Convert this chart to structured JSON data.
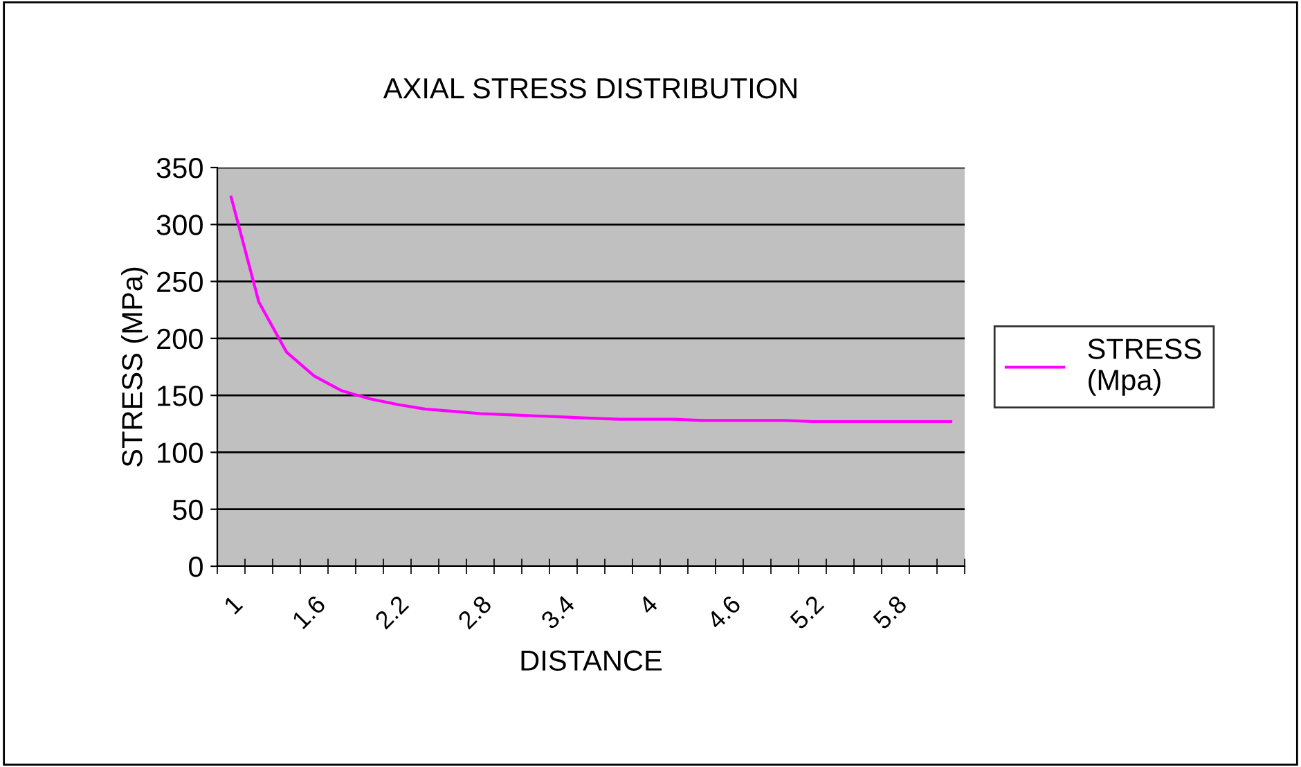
{
  "chart_data": {
    "type": "line",
    "title": "AXIAL STRESS DISTRIBUTION",
    "xlabel": "DISTANCE",
    "ylabel": "STRESS (MPa)",
    "categories": [
      "1",
      null,
      null,
      "1.6",
      null,
      null,
      "2.2",
      null,
      null,
      "2.8",
      null,
      null,
      "3.4",
      null,
      null,
      "4",
      null,
      null,
      "4.6",
      null,
      null,
      "5.2",
      null,
      null,
      "5.8",
      null,
      null
    ],
    "series": [
      {
        "name": "STRESS (Mpa)",
        "color": "#ff00ff",
        "values": [
          324,
          232,
          188,
          167,
          154,
          147,
          142,
          138,
          136,
          134,
          133,
          132,
          131,
          130,
          129,
          129,
          129,
          128,
          128,
          128,
          128,
          127,
          127,
          127,
          127,
          127,
          127
        ]
      }
    ],
    "ylim": [
      0,
      350
    ],
    "yticks": [
      0,
      50,
      100,
      150,
      200,
      250,
      300,
      350
    ],
    "grid": "y",
    "legend": "right",
    "marker": "none",
    "line_style": "solid"
  }
}
